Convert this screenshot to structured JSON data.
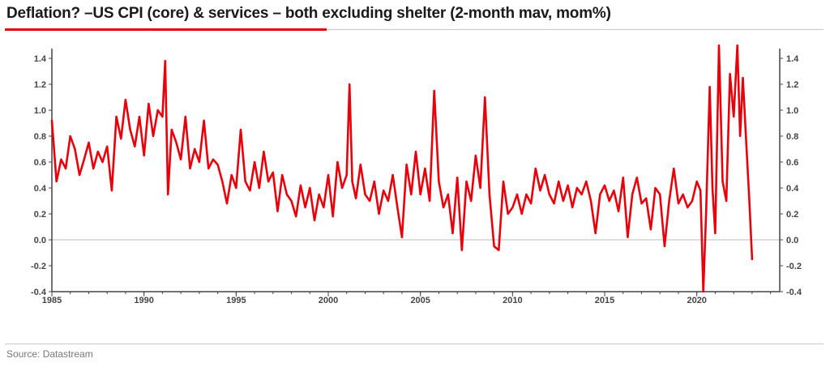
{
  "title": "Deflation? –US CPI (core) & services – both excluding shelter (2-month mav, mom%)",
  "source": "Source: Datastream",
  "colors": {
    "line": "#e8000b",
    "accent": "#e8000b",
    "axis": "#444444",
    "zero_line": "#bdbdbd"
  },
  "chart_data": {
    "type": "line",
    "title": "Deflation? –US CPI (core) & services – both excluding shelter (2-month mav, mom%)",
    "xlabel": "",
    "ylabel": "",
    "xlim": [
      1985,
      2024.5
    ],
    "ylim": [
      -0.4,
      1.5
    ],
    "grid": false,
    "legend": "none",
    "x_ticks": [
      1985,
      1990,
      1995,
      2000,
      2005,
      2010,
      2015,
      2020
    ],
    "x_tick_labels": [
      "1985",
      "1990",
      "1995",
      "2000",
      "2005",
      "2010",
      "2015",
      "2020"
    ],
    "y_ticks": [
      -0.4,
      -0.2,
      0.0,
      0.2,
      0.4,
      0.6,
      0.8,
      1.0,
      1.2,
      1.4
    ],
    "y_tick_labels": [
      "-0.4",
      "-0.2",
      "0.0",
      "0.2",
      "0.4",
      "0.6",
      "0.8",
      "1.0",
      "1.2",
      "1.4"
    ],
    "series": [
      {
        "x": [
          1985.0,
          1985.25,
          1985.5,
          1985.75,
          1986.0,
          1986.25,
          1986.5,
          1986.75,
          1987.0,
          1987.25,
          1987.5,
          1987.75,
          1988.0,
          1988.25,
          1988.5,
          1988.75,
          1989.0,
          1989.25,
          1989.5,
          1989.75,
          1990.0,
          1990.25,
          1990.5,
          1990.75,
          1991.0,
          1991.15,
          1991.3,
          1991.5,
          1991.75,
          1992.0,
          1992.25,
          1992.5,
          1992.75,
          1993.0,
          1993.25,
          1993.5,
          1993.75,
          1994.0,
          1994.25,
          1994.5,
          1994.75,
          1995.0,
          1995.25,
          1995.5,
          1995.75,
          1996.0,
          1996.25,
          1996.5,
          1996.75,
          1997.0,
          1997.25,
          1997.5,
          1997.75,
          1998.0,
          1998.25,
          1998.5,
          1998.75,
          1999.0,
          1999.25,
          1999.5,
          1999.75,
          2000.0,
          2000.25,
          2000.5,
          2000.75,
          2001.0,
          2001.15,
          2001.3,
          2001.5,
          2001.75,
          2002.0,
          2002.25,
          2002.5,
          2002.75,
          2003.0,
          2003.25,
          2003.5,
          2003.75,
          2004.0,
          2004.25,
          2004.5,
          2004.75,
          2005.0,
          2005.25,
          2005.5,
          2005.75,
          2006.0,
          2006.25,
          2006.5,
          2006.75,
          2007.0,
          2007.25,
          2007.5,
          2007.75,
          2008.0,
          2008.25,
          2008.5,
          2008.75,
          2009.0,
          2009.25,
          2009.5,
          2009.75,
          2010.0,
          2010.25,
          2010.5,
          2010.75,
          2011.0,
          2011.25,
          2011.5,
          2011.75,
          2012.0,
          2012.25,
          2012.5,
          2012.75,
          2013.0,
          2013.25,
          2013.5,
          2013.75,
          2014.0,
          2014.25,
          2014.5,
          2014.75,
          2015.0,
          2015.25,
          2015.5,
          2015.75,
          2016.0,
          2016.25,
          2016.5,
          2016.75,
          2017.0,
          2017.25,
          2017.5,
          2017.75,
          2018.0,
          2018.25,
          2018.5,
          2018.75,
          2019.0,
          2019.25,
          2019.5,
          2019.75,
          2020.0,
          2020.2,
          2020.35,
          2020.5,
          2020.7,
          2020.85,
          2021.0,
          2021.2,
          2021.4,
          2021.6,
          2021.8,
          2022.0,
          2022.2,
          2022.35,
          2022.5,
          2022.7,
          2022.85,
          2023.0
        ],
        "y": [
          0.92,
          0.45,
          0.62,
          0.55,
          0.8,
          0.7,
          0.5,
          0.62,
          0.75,
          0.55,
          0.68,
          0.6,
          0.72,
          0.38,
          0.95,
          0.78,
          1.08,
          0.85,
          0.72,
          0.95,
          0.65,
          1.05,
          0.8,
          1.0,
          0.95,
          1.38,
          0.35,
          0.85,
          0.75,
          0.62,
          0.95,
          0.55,
          0.7,
          0.6,
          0.92,
          0.55,
          0.62,
          0.58,
          0.45,
          0.28,
          0.5,
          0.4,
          0.85,
          0.45,
          0.38,
          0.6,
          0.4,
          0.68,
          0.45,
          0.52,
          0.22,
          0.5,
          0.35,
          0.3,
          0.18,
          0.42,
          0.25,
          0.4,
          0.15,
          0.35,
          0.25,
          0.5,
          0.18,
          0.6,
          0.4,
          0.5,
          1.2,
          0.45,
          0.32,
          0.58,
          0.35,
          0.3,
          0.45,
          0.2,
          0.38,
          0.3,
          0.5,
          0.25,
          0.02,
          0.58,
          0.35,
          0.68,
          0.35,
          0.55,
          0.3,
          1.15,
          0.45,
          0.25,
          0.35,
          0.05,
          0.48,
          -0.08,
          0.45,
          0.3,
          0.65,
          0.4,
          1.1,
          0.35,
          -0.05,
          -0.08,
          0.45,
          0.2,
          0.25,
          0.35,
          0.2,
          0.35,
          0.28,
          0.55,
          0.38,
          0.5,
          0.35,
          0.28,
          0.45,
          0.3,
          0.42,
          0.25,
          0.4,
          0.35,
          0.45,
          0.3,
          0.05,
          0.35,
          0.42,
          0.3,
          0.38,
          0.22,
          0.48,
          0.02,
          0.35,
          0.48,
          0.28,
          0.32,
          0.08,
          0.4,
          0.35,
          -0.05,
          0.3,
          0.55,
          0.28,
          0.35,
          0.25,
          0.3,
          0.45,
          0.38,
          -0.4,
          0.2,
          1.18,
          0.4,
          0.05,
          1.5,
          0.45,
          0.3,
          1.28,
          0.95,
          1.5,
          0.8,
          1.25,
          0.7,
          0.3,
          -0.15
        ]
      }
    ]
  }
}
